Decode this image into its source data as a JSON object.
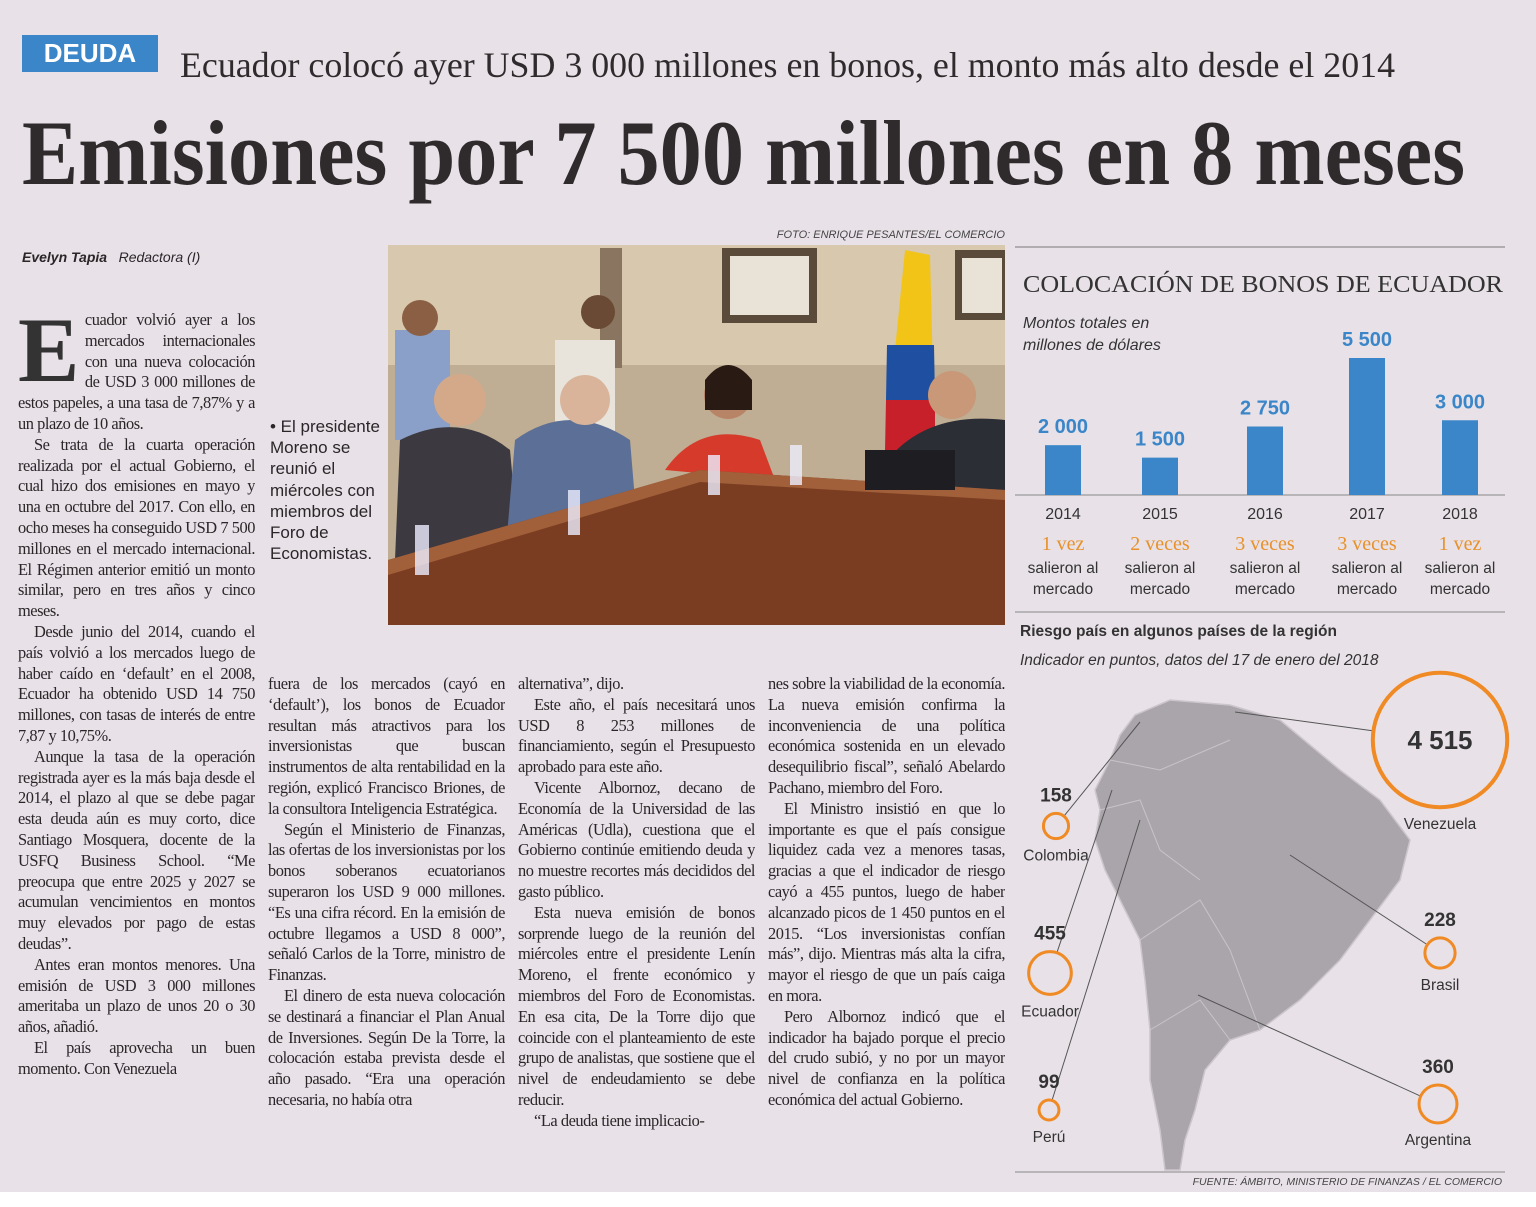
{
  "header": {
    "section": "DEUDA",
    "kicker": "Ecuador colocó ayer USD 3 000 millones en bonos, el monto más alto desde el 2014",
    "title": "Emisiones por 7 500 millones en 8 meses",
    "byline": {
      "author": "Evelyn Tapia",
      "role": "Redactora (I)"
    }
  },
  "photo": {
    "credit": "FOTO: ENRIQUE PESANTES/EL COMERCIO",
    "caption": "• El presidente Moreno se reunió el miércoles con miembros del Foro de Economistas."
  },
  "article": {
    "columns": [
      [
        "Ecuador volvió ayer a los mercados internacionales con una nueva colocación de USD 3 000 millones de estos papeles, a una tasa de 7,87% y a un plazo de 10 años.",
        "Se trata de la cuarta operación realizada por el actual Gobierno, el cual hizo dos emisiones en mayo y una en octubre del 2017. Con ello, en ocho meses ha conseguido USD 7 500 millones en el mercado internacional. El Régimen anterior emitió un monto similar, pero en tres años y cinco meses.",
        "Desde junio del 2014, cuando el país volvió a los mercados luego de haber caído en ‘default’ en el 2008, Ecuador ha obtenido USD 14 750 millones, con tasas de interés de entre 7,87 y 10,75%.",
        "Aunque la tasa de la operación registrada ayer es la más baja desde el 2014, el plazo al que se debe pagar esta deuda aún es muy corto, dice Santiago Mosquera, docente de la USFQ Business School. “Me preocupa que entre 2025 y 2027 se acumulan vencimientos en montos muy elevados por pago de estas deudas”.",
        "Antes eran montos menores. Una emisión de USD 3 000 millones ameritaba un plazo de unos 20 o 30 años, añadió.",
        "El país aprovecha un buen momento. Con Venezuela"
      ],
      [
        "fuera de los mercados (cayó en ‘default’), los bonos de Ecuador resultan más atractivos para los inversionistas que buscan instrumentos de alta rentabilidad en la región, explicó Francisco Briones, de la consultora Inteligencia Estratégica.",
        "Según el Ministerio de Finanzas, las ofertas de los inversionistas por los bonos soberanos ecuatorianos superaron los USD 9 000 millones. “Es una cifra récord. En la emisión de octubre llegamos a USD 8 000”, señaló Carlos de la Torre, ministro de Finanzas.",
        "El dinero de esta nueva colocación se destinará a financiar el Plan Anual de Inversiones. Según De la Torre, la colocación estaba prevista desde el año pasado. “Era una operación necesaria, no había otra"
      ],
      [
        "alternativa”, dijo.",
        "Este año, el país necesitará unos USD 8 253 millones de financiamiento, según el Presupuesto aprobado para este año.",
        "Vicente Albornoz, decano de Economía de la Universidad de las Américas (Udla), cuestiona que el Gobierno continúe emitiendo deuda y no muestre recortes más decididos del gasto público.",
        "Esta nueva emisión de bonos sorprende luego de la reunión del miércoles entre el presidente Lenín Moreno, el frente económico y miembros del Foro de Economistas. En esa cita, De la Torre dijo que coincide con el planteamiento de este grupo de analistas, que sostiene que el nivel de endeudamiento se debe reducir.",
        "“La deuda tiene implicacio-"
      ],
      [
        "nes sobre la viabilidad de la economía. La nueva emisión confirma la inconveniencia de una política económica sostenida en un elevado desequilibrio fiscal”, señaló Abelardo Pachano, miembro del Foro.",
        "El Ministro insistió en que lo importante es que el país consigue liquidez cada vez a menores tasas, gracias a que el indicador de riesgo cayó a 455 puntos, luego de haber alcanzado picos de 1 450 puntos en el 2015. “Los inversionistas confían más”, dijo. Mientras más alta la cifra, mayor el riesgo de que un país caiga en mora.",
        "Pero Albornoz indicó que el indicador ha bajado porque el precio del crudo subió, y no por un mayor nivel de confianza en la política económica del actual Gobierno."
      ]
    ]
  },
  "chart_data": [
    {
      "type": "bar",
      "title": "COLOCACIÓN DE BONOS DE ECUADOR",
      "subtitle": "Montos totales en millones de dólares",
      "categories": [
        "2014",
        "2015",
        "2016",
        "2017",
        "2018"
      ],
      "values": [
        2000,
        1500,
        2750,
        5500,
        3000
      ],
      "value_labels": [
        "2 000",
        "1 500",
        "2 750",
        "5 500",
        "3 000"
      ],
      "color": "#3a86c8",
      "annotations": [
        "1 vez",
        "2 veces",
        "3 veces",
        "3 veces",
        "1 vez"
      ],
      "annotation_note": "salieron al mercado"
    },
    {
      "type": "bubble_map",
      "title": "Riesgo país en algunos países de la región",
      "subtitle": "Indicador en puntos, datos del 17 de enero del 2018",
      "categories": [
        "Venezuela",
        "Colombia",
        "Ecuador",
        "Perú",
        "Brasil",
        "Argentina"
      ],
      "values": [
        4515,
        158,
        455,
        99,
        228,
        360
      ],
      "value_labels": [
        "4 515",
        "158",
        "455",
        "99",
        "228",
        "360"
      ],
      "color": "#f08a24",
      "source": "FUENTE: ÁMBITO, MINISTERIO DE FINANZAS / EL COMERCIO"
    }
  ]
}
